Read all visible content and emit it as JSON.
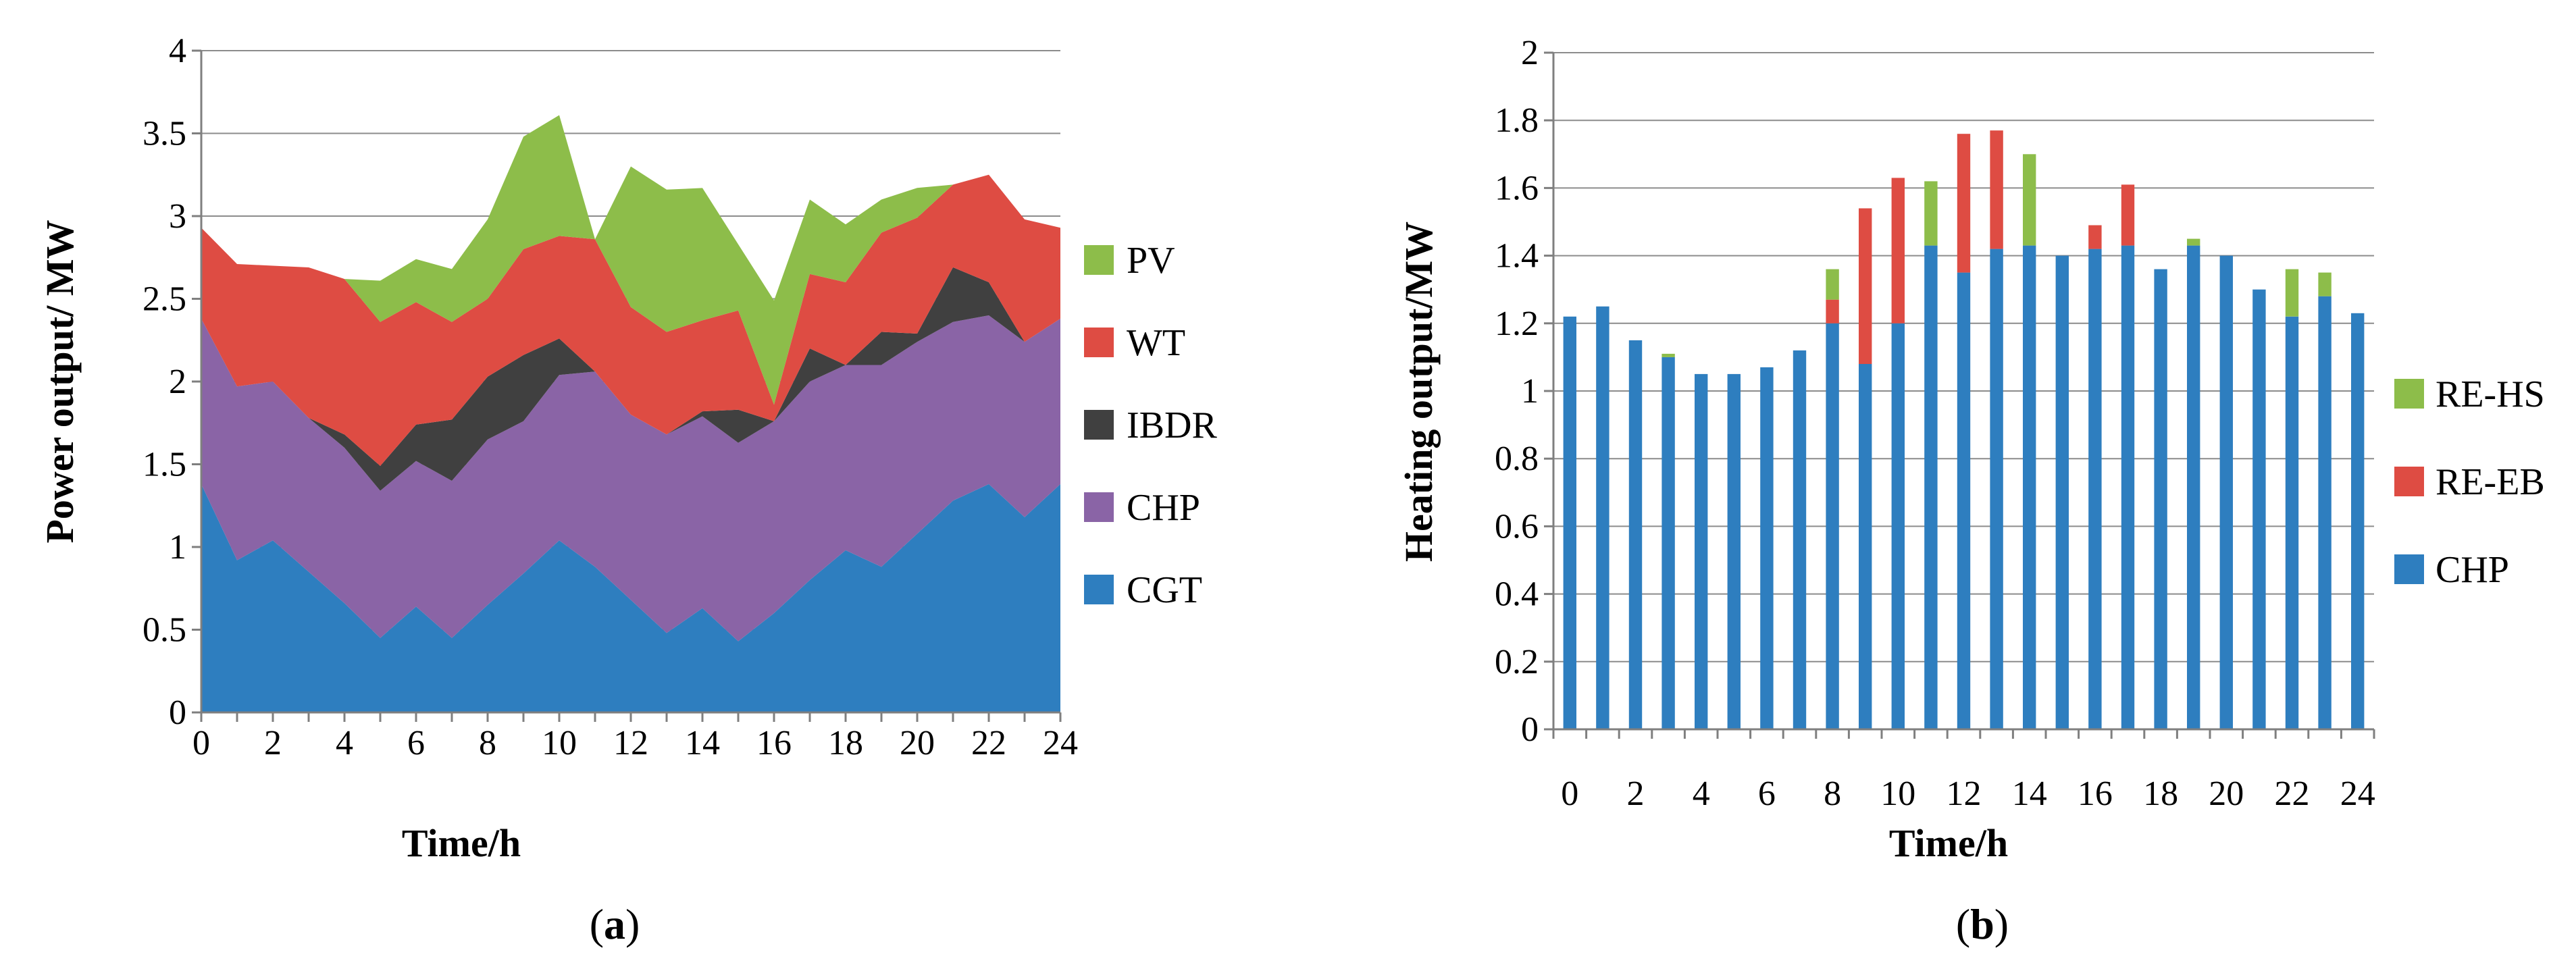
{
  "chart_data": [
    {
      "type": "area",
      "stacked": true,
      "title": "",
      "caption_letter": "a",
      "xlabel": "Time/h",
      "ylabel": "Power output/ MW",
      "x": [
        0,
        1,
        2,
        3,
        4,
        5,
        6,
        7,
        8,
        9,
        10,
        11,
        12,
        13,
        14,
        15,
        16,
        17,
        18,
        19,
        20,
        21,
        22,
        23,
        24
      ],
      "xticks": [
        "0",
        "2",
        "4",
        "6",
        "8",
        "10",
        "12",
        "14",
        "16",
        "18",
        "20",
        "22",
        "24"
      ],
      "yticks": [
        "0",
        "0.5",
        "1",
        "1.5",
        "2",
        "2.5",
        "3",
        "3.5",
        "4"
      ],
      "xlim": [
        0,
        24
      ],
      "ylim": [
        0,
        4
      ],
      "grid": true,
      "legend_order": [
        "PV",
        "WT",
        "IBDR",
        "CHP",
        "CGT"
      ],
      "series": [
        {
          "name": "CGT",
          "color": "#2E7EBF",
          "values": [
            1.38,
            0.92,
            1.04,
            0.85,
            0.66,
            0.45,
            0.64,
            0.45,
            0.65,
            0.84,
            1.04,
            0.88,
            0.68,
            0.48,
            0.63,
            0.43,
            0.6,
            0.8,
            0.98,
            0.88,
            1.08,
            1.28,
            1.38,
            1.18,
            1.38
          ]
        },
        {
          "name": "CHP",
          "color": "#8A64A6",
          "values": [
            1.0,
            1.05,
            0.96,
            0.93,
            0.94,
            0.89,
            0.88,
            0.95,
            1.0,
            0.92,
            1.0,
            1.18,
            1.12,
            1.2,
            1.16,
            1.2,
            1.16,
            1.2,
            1.12,
            1.22,
            1.16,
            1.08,
            1.02,
            1.06,
            1.0
          ]
        },
        {
          "name": "IBDR",
          "color": "#404040",
          "values": [
            0.0,
            0.0,
            0.0,
            0.0,
            0.08,
            0.15,
            0.22,
            0.37,
            0.38,
            0.4,
            0.22,
            0.0,
            0.0,
            0.0,
            0.03,
            0.2,
            0.0,
            0.2,
            0.0,
            0.2,
            0.05,
            0.33,
            0.2,
            0.0,
            0.0
          ]
        },
        {
          "name": "WT",
          "color": "#DE4C43",
          "values": [
            0.55,
            0.74,
            0.7,
            0.91,
            0.94,
            0.87,
            0.74,
            0.59,
            0.47,
            0.64,
            0.62,
            0.8,
            0.65,
            0.62,
            0.55,
            0.6,
            0.1,
            0.45,
            0.5,
            0.6,
            0.7,
            0.5,
            0.65,
            0.74,
            0.55
          ]
        },
        {
          "name": "PV",
          "color": "#8DBD4A",
          "values": [
            0.0,
            0.0,
            0.0,
            0.0,
            0.0,
            0.25,
            0.26,
            0.32,
            0.48,
            0.68,
            0.73,
            0.0,
            0.85,
            0.86,
            0.8,
            0.4,
            0.63,
            0.45,
            0.35,
            0.2,
            0.18,
            0.0,
            0.0,
            0.0,
            0.0
          ]
        }
      ]
    },
    {
      "type": "bar",
      "stacked": true,
      "title": "",
      "caption_letter": "b",
      "xlabel": "Time/h",
      "ylabel": "Heating output/MW",
      "categories": [
        "0",
        "1",
        "2",
        "3",
        "4",
        "5",
        "6",
        "7",
        "8",
        "9",
        "10",
        "11",
        "12",
        "13",
        "14",
        "15",
        "16",
        "17",
        "18",
        "19",
        "20",
        "21",
        "22",
        "23",
        "24"
      ],
      "xticks": [
        "0",
        "2",
        "4",
        "6",
        "8",
        "10",
        "12",
        "14",
        "16",
        "18",
        "20",
        "22",
        "24"
      ],
      "yticks": [
        "0",
        "0.2",
        "0.4",
        "0.6",
        "0.8",
        "1",
        "1.2",
        "1.4",
        "1.6",
        "1.8",
        "2"
      ],
      "ylim": [
        0,
        2
      ],
      "grid": true,
      "legend_order": [
        "RE-HS",
        "RE-EB",
        "CHP"
      ],
      "series": [
        {
          "name": "CHP",
          "color": "#2E7EBF",
          "values": [
            1.22,
            1.25,
            1.15,
            1.1,
            1.05,
            1.05,
            1.07,
            1.12,
            1.2,
            1.08,
            1.2,
            1.43,
            1.35,
            1.42,
            1.43,
            1.4,
            1.42,
            1.43,
            1.36,
            1.43,
            1.4,
            1.3,
            1.22,
            1.28,
            1.23
          ]
        },
        {
          "name": "RE-EB",
          "color": "#DE4C43",
          "values": [
            0,
            0,
            0,
            0,
            0,
            0,
            0,
            0,
            0.07,
            0.46,
            0.43,
            0,
            0.41,
            0.35,
            0,
            0,
            0.07,
            0.18,
            0,
            0,
            0,
            0,
            0,
            0,
            0
          ]
        },
        {
          "name": "RE-HS",
          "color": "#8DBD4A",
          "values": [
            0,
            0,
            0,
            0.01,
            0,
            0,
            0,
            0,
            0.09,
            0,
            0,
            0.19,
            0,
            0,
            0.27,
            0,
            0,
            0,
            0,
            0.02,
            0,
            0,
            0.14,
            0.07,
            0
          ]
        }
      ]
    }
  ]
}
